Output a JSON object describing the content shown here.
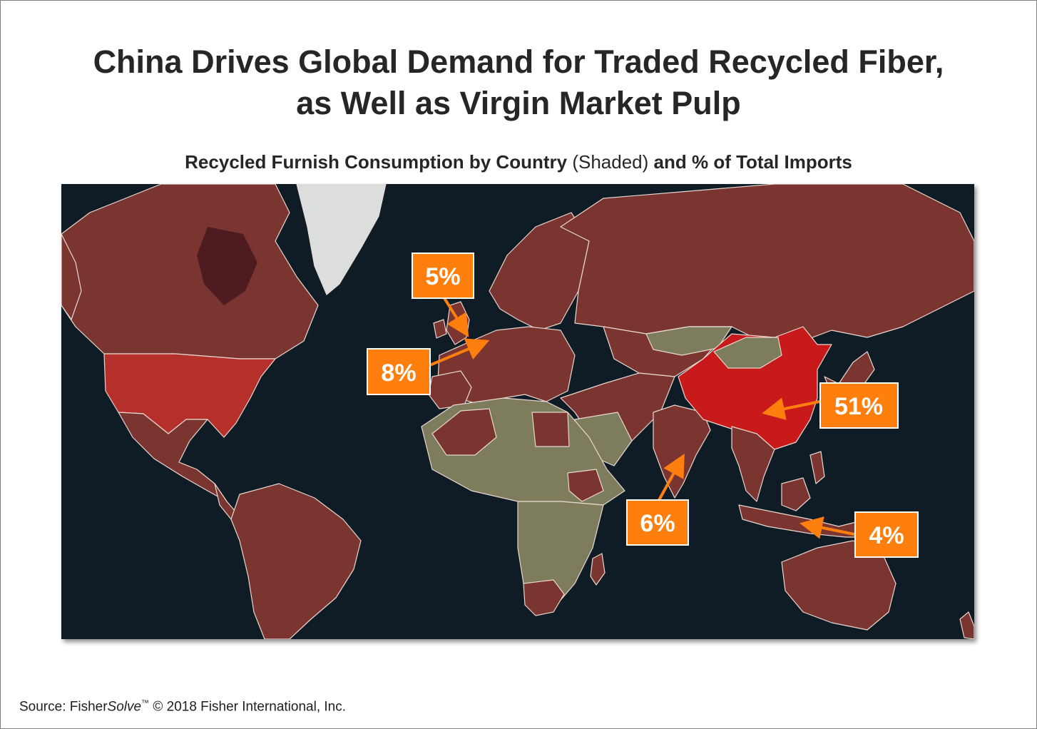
{
  "title": {
    "line1": "China Drives Global Demand for Traded Recycled Fiber,",
    "line2": "as Well as Virgin Market Pulp"
  },
  "subtitle": {
    "part1": "Recycled Furnish Consumption by Country",
    "part2": "(Shaded)",
    "part3": "and % of Total Imports"
  },
  "callouts": [
    {
      "region": "uk",
      "label": "5%"
    },
    {
      "region": "europe",
      "label": "8%"
    },
    {
      "region": "china",
      "label": "51%"
    },
    {
      "region": "india",
      "label": "6%"
    },
    {
      "region": "indonesia",
      "label": "4%"
    }
  ],
  "colors": {
    "ocean": "#0f1c26",
    "shaded": "#7a3530",
    "unshaded": "#7d7c5c",
    "china": "#c8191b",
    "usa": "#b6302b",
    "callout": "#ff7f0e",
    "callout_border": "#ffffff"
  },
  "source": {
    "prefix": "Source: Fisher",
    "italic": "Solve",
    "tm": "™",
    "suffix": " © 2018 Fisher International, Inc."
  }
}
